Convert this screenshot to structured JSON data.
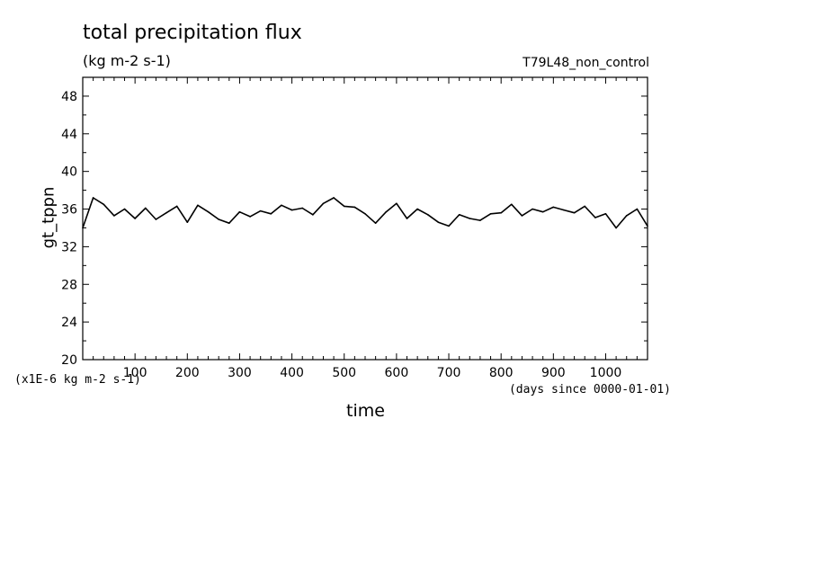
{
  "chart_data": {
    "type": "line",
    "title": "total precipitation flux",
    "units": "(kg m-2 s-1)",
    "run_label": "T79L48_non_control",
    "ylabel": "gt_tppn",
    "xlabel": "time",
    "y_scale_note": "(x1E-6 kg m-2 s-1)",
    "x_units_note": "(days since 0000-01-01)",
    "xlim": [
      0,
      1080
    ],
    "ylim": [
      20,
      50
    ],
    "x_ticks": [
      100,
      200,
      300,
      400,
      500,
      600,
      700,
      800,
      900,
      1000
    ],
    "y_ticks": [
      20,
      24,
      28,
      32,
      36,
      40,
      44,
      48
    ],
    "grid": false,
    "line_color": "#000000",
    "series": [
      {
        "name": "",
        "x": [
          0,
          20,
          40,
          60,
          80,
          100,
          120,
          140,
          160,
          180,
          200,
          220,
          240,
          260,
          280,
          300,
          320,
          340,
          360,
          380,
          400,
          420,
          440,
          460,
          480,
          500,
          520,
          540,
          560,
          580,
          600,
          620,
          640,
          660,
          680,
          700,
          720,
          740,
          760,
          780,
          800,
          820,
          840,
          860,
          880,
          900,
          920,
          940,
          960,
          980,
          1000,
          1020,
          1040,
          1060,
          1080
        ],
        "values": [
          34.0,
          37.2,
          36.5,
          35.3,
          36.0,
          35.0,
          36.1,
          34.9,
          35.6,
          36.3,
          34.6,
          36.4,
          35.7,
          34.9,
          34.5,
          35.7,
          35.2,
          35.8,
          35.5,
          36.4,
          35.9,
          36.1,
          35.4,
          36.6,
          37.2,
          36.3,
          36.2,
          35.5,
          34.5,
          35.7,
          36.6,
          35.0,
          36.0,
          35.4,
          34.6,
          34.2,
          35.4,
          35.0,
          34.8,
          35.5,
          35.6,
          36.5,
          35.3,
          36.0,
          35.7,
          36.2,
          35.9,
          35.6,
          36.3,
          35.1,
          35.5,
          34.0,
          35.3,
          36.0,
          34.2
        ]
      }
    ]
  }
}
